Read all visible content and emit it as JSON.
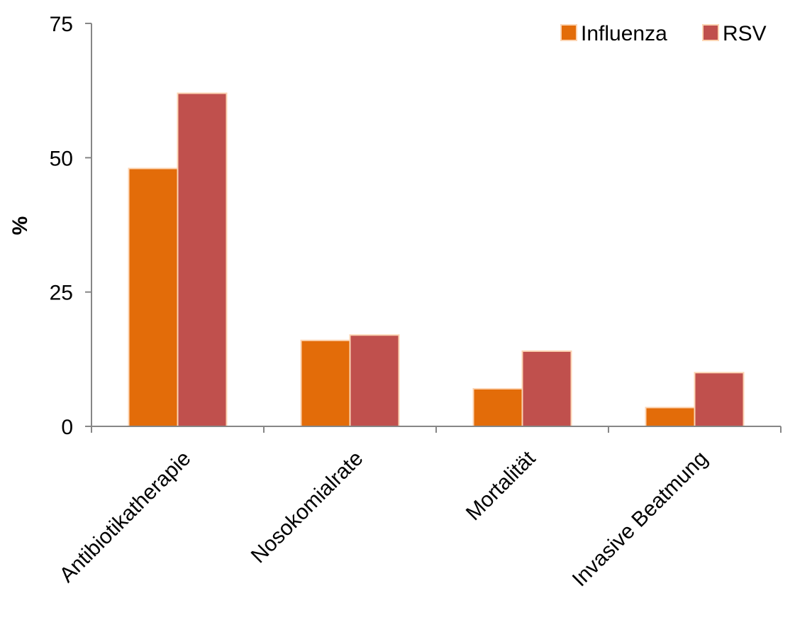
{
  "chart_data": {
    "type": "bar",
    "title": "",
    "xlabel": "",
    "ylabel": "%",
    "ylim": [
      0,
      75
    ],
    "yticks": [
      0,
      25,
      50,
      75
    ],
    "grid": false,
    "legend_position": "top-right",
    "categories": [
      "Antibiotikatherapie",
      "Nosokomialrate",
      "Mortalität",
      "Invasive Beatmung"
    ],
    "series": [
      {
        "name": "Influenza",
        "color": "#e36c09",
        "values": [
          48,
          16,
          7,
          3.5
        ]
      },
      {
        "name": "RSV",
        "color": "#c0504d",
        "values": [
          62,
          17,
          14,
          10
        ]
      }
    ],
    "bar_border_color": "#fcd5b4"
  }
}
